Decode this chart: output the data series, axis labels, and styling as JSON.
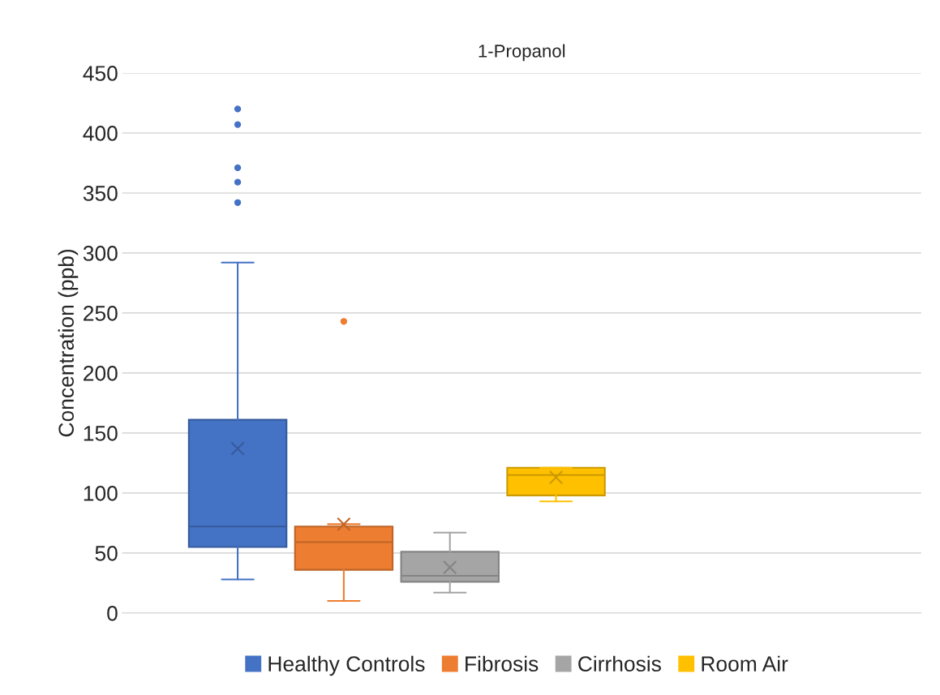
{
  "chart_data": {
    "type": "box",
    "title": "1-Propanol",
    "ylabel": "Concentration (ppb)",
    "categories": [
      null
    ],
    "ylim": [
      0,
      450
    ],
    "yticks": [
      0,
      50,
      100,
      150,
      200,
      250,
      300,
      350,
      400,
      450
    ],
    "grid": "y",
    "legend": "bottom",
    "series": [
      {
        "name": "Healthy Controls",
        "color": "#4472c4",
        "boxes": [
          {
            "low": 28,
            "q1": 55,
            "median": 72,
            "q3": 161,
            "high": 292,
            "mean": 137,
            "outliers": [
              420,
              407,
              371,
              359,
              342
            ]
          }
        ]
      },
      {
        "name": "Fibrosis",
        "color": "#ed7d31",
        "boxes": [
          {
            "low": 10,
            "q1": 36,
            "median": 59,
            "q3": 72,
            "high": 74,
            "mean": 74,
            "outliers": [
              243
            ]
          }
        ]
      },
      {
        "name": "Cirrhosis",
        "color": "#a5a5a5",
        "boxes": [
          {
            "low": 17,
            "q1": 26,
            "median": 31,
            "q3": 51,
            "high": 67,
            "mean": 38
          }
        ]
      },
      {
        "name": "Room Air",
        "color": "#ffc000",
        "boxes": [
          {
            "low": 93,
            "q1": 98,
            "median": 115,
            "q3": 121,
            "high": 121,
            "mean": 113
          }
        ]
      }
    ]
  }
}
